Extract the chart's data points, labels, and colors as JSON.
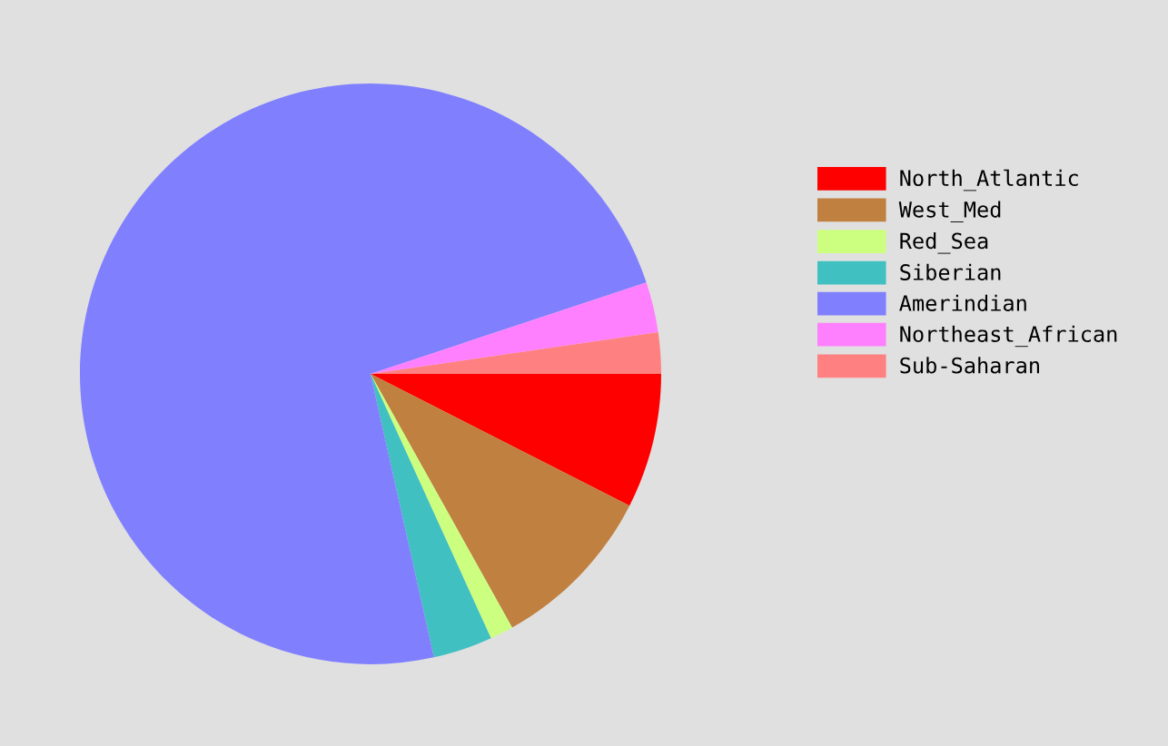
{
  "chart_data": {
    "type": "pie",
    "categories": [
      "North_Atlantic",
      "West_Med",
      "Red_Sea",
      "Siberian",
      "Amerindian",
      "Northeast_African",
      "Sub-Saharan"
    ],
    "values": [
      7.5,
      9.4,
      1.3,
      3.3,
      73.4,
      2.8,
      2.3
    ],
    "colors": [
      "#ff0000",
      "#c08040",
      "#ccff80",
      "#40c0c0",
      "#8080ff",
      "#ff80ff",
      "#ff8080"
    ],
    "legend": "right"
  }
}
